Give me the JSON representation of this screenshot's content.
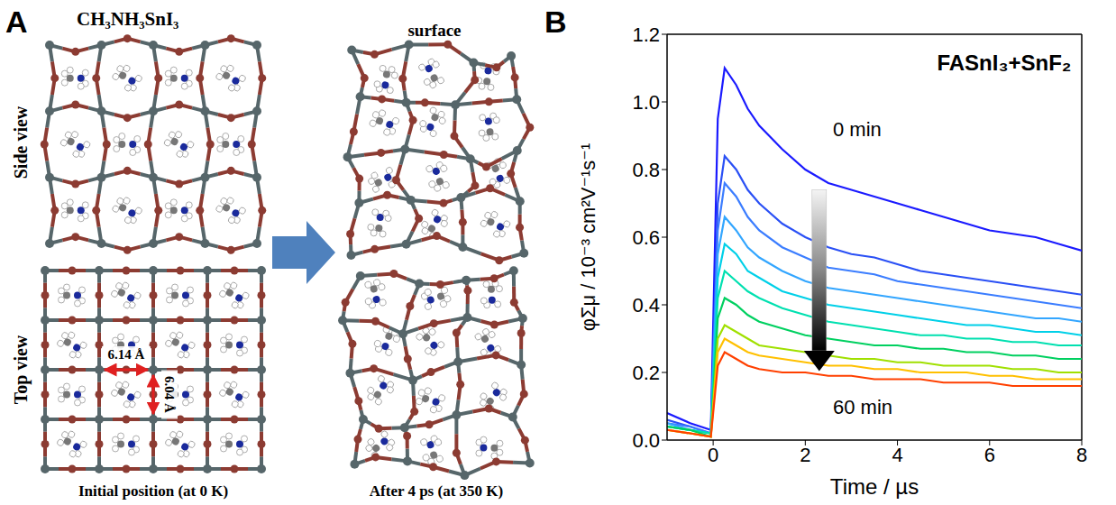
{
  "diagram": {
    "letter": "A",
    "title": "CH₃NH₃SnI₃",
    "row_labels": [
      "Side view",
      "Top view"
    ],
    "right_title": "surface",
    "captions": [
      "Initial position (at 0 K)",
      "After 4 ps (at 350 K)"
    ],
    "distances": [
      "6.14 Å",
      "6.04 Å"
    ]
  },
  "chart_data": {
    "letter": "B",
    "type": "line",
    "title": "FASnI₃+SnF₂",
    "x_label": "Time / µs",
    "y_label": "φΣμ / 10⁻³ cm²V⁻¹s⁻¹",
    "annotations": [
      "0 min",
      "60 min"
    ],
    "x": [
      -1,
      -0.5,
      -0.05,
      0.1,
      0.25,
      0.5,
      0.75,
      1,
      1.5,
      2,
      2.5,
      3,
      3.5,
      4,
      4.5,
      5,
      5.5,
      6,
      6.5,
      7,
      7.5,
      8
    ],
    "series": [
      {
        "color": "#1a1aff",
        "values": [
          0.08,
          0.05,
          0.03,
          0.95,
          1.1,
          1.05,
          0.98,
          0.93,
          0.86,
          0.8,
          0.76,
          0.74,
          0.72,
          0.7,
          0.68,
          0.66,
          0.64,
          0.62,
          0.61,
          0.6,
          0.58,
          0.56
        ]
      },
      {
        "color": "#2a50f5",
        "values": [
          0.06,
          0.04,
          0.02,
          0.7,
          0.84,
          0.8,
          0.74,
          0.7,
          0.64,
          0.6,
          0.57,
          0.55,
          0.54,
          0.52,
          0.5,
          0.49,
          0.48,
          0.47,
          0.46,
          0.45,
          0.44,
          0.43
        ]
      },
      {
        "color": "#3b7dff",
        "values": [
          0.05,
          0.04,
          0.02,
          0.62,
          0.76,
          0.72,
          0.66,
          0.62,
          0.57,
          0.54,
          0.51,
          0.5,
          0.49,
          0.47,
          0.46,
          0.45,
          0.44,
          0.43,
          0.42,
          0.41,
          0.4,
          0.39
        ]
      },
      {
        "color": "#33a6ff",
        "values": [
          0.05,
          0.03,
          0.02,
          0.55,
          0.66,
          0.62,
          0.57,
          0.54,
          0.5,
          0.47,
          0.45,
          0.44,
          0.43,
          0.42,
          0.41,
          0.4,
          0.39,
          0.38,
          0.37,
          0.36,
          0.36,
          0.35
        ]
      },
      {
        "color": "#00d0e8",
        "values": [
          0.04,
          0.03,
          0.02,
          0.48,
          0.58,
          0.55,
          0.5,
          0.48,
          0.44,
          0.42,
          0.4,
          0.39,
          0.38,
          0.37,
          0.36,
          0.35,
          0.34,
          0.34,
          0.33,
          0.32,
          0.32,
          0.31
        ]
      },
      {
        "color": "#00e0b0",
        "values": [
          0.04,
          0.03,
          0.02,
          0.42,
          0.5,
          0.47,
          0.44,
          0.42,
          0.39,
          0.37,
          0.35,
          0.34,
          0.33,
          0.32,
          0.31,
          0.31,
          0.3,
          0.3,
          0.29,
          0.29,
          0.28,
          0.28
        ]
      },
      {
        "color": "#00d060",
        "values": [
          0.04,
          0.03,
          0.01,
          0.36,
          0.42,
          0.4,
          0.37,
          0.35,
          0.33,
          0.31,
          0.3,
          0.29,
          0.28,
          0.28,
          0.27,
          0.27,
          0.26,
          0.26,
          0.25,
          0.25,
          0.24,
          0.24
        ]
      },
      {
        "color": "#a0e000",
        "values": [
          0.03,
          0.02,
          0.01,
          0.3,
          0.34,
          0.32,
          0.3,
          0.28,
          0.27,
          0.26,
          0.25,
          0.24,
          0.24,
          0.23,
          0.23,
          0.22,
          0.22,
          0.22,
          0.21,
          0.21,
          0.2,
          0.2
        ]
      },
      {
        "color": "#ffc000",
        "values": [
          0.03,
          0.02,
          0.01,
          0.26,
          0.3,
          0.28,
          0.26,
          0.25,
          0.24,
          0.23,
          0.22,
          0.22,
          0.21,
          0.21,
          0.2,
          0.2,
          0.2,
          0.19,
          0.19,
          0.18,
          0.18,
          0.18
        ]
      },
      {
        "color": "#ff4000",
        "values": [
          0.03,
          0.02,
          0.01,
          0.22,
          0.26,
          0.24,
          0.22,
          0.21,
          0.2,
          0.2,
          0.19,
          0.19,
          0.18,
          0.18,
          0.18,
          0.17,
          0.17,
          0.17,
          0.16,
          0.16,
          0.16,
          0.16
        ]
      }
    ],
    "xlim": [
      -1,
      8
    ],
    "xticks": [
      0,
      2,
      4,
      6,
      8
    ],
    "ylim": [
      0,
      1.2
    ],
    "yticks": [
      {
        "value": 0,
        "label": "0.0"
      },
      {
        "value": 0.2,
        "label": "0.2"
      },
      {
        "value": 0.4,
        "label": "0.4"
      },
      {
        "value": 0.6,
        "label": "0.6"
      },
      {
        "value": 0.8,
        "label": "0.8"
      },
      {
        "value": 1,
        "label": "1.0"
      },
      {
        "value": 1.2,
        "label": "1.2"
      }
    ],
    "grid": false
  }
}
